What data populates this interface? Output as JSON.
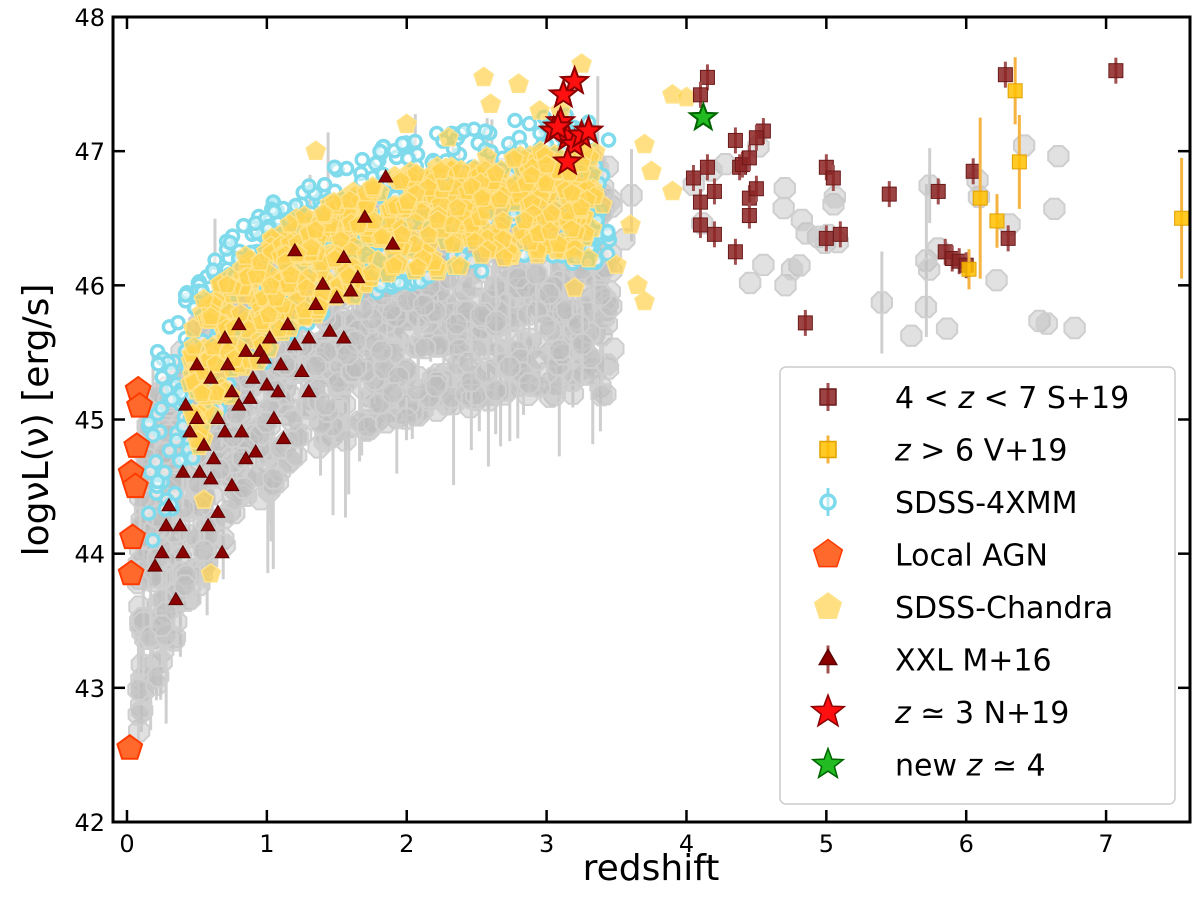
{
  "chart_data": {
    "type": "scatter",
    "title": "",
    "xlabel": "redshift",
    "ylabel": "logνL(ν) [erg/s]",
    "xlim": [
      -0.1,
      7.6
    ],
    "ylim": [
      42,
      48
    ],
    "xticks": [
      0,
      1,
      2,
      3,
      4,
      5,
      6,
      7
    ],
    "yticks": [
      42,
      43,
      44,
      45,
      46,
      47,
      48
    ],
    "xtick_labels": [
      "0",
      "1",
      "2",
      "3",
      "4",
      "5",
      "6",
      "7"
    ],
    "ytick_labels": [
      "42",
      "43",
      "44",
      "45",
      "46",
      "47",
      "48"
    ],
    "grid": false,
    "legend_position": "right",
    "colors": {
      "s19": "#8b2323",
      "v19": "#ffc000",
      "sdss4xmm": "#7fdbeb",
      "local": "#ff6a2c",
      "sdss_chandra": "#ffd24d",
      "xxl": "#8b0000",
      "n19": "#ff1010",
      "new": "#22bb22",
      "background": "#bdbdbd"
    },
    "series": [
      {
        "key": "bg",
        "name": "SDSS background sample (unlabelled)",
        "marker": "octagon",
        "in_legend": false,
        "points": []
      },
      {
        "key": "sdss4xmm",
        "name": "SDSS-4XMM",
        "marker": "circle",
        "in_legend": true,
        "points": []
      },
      {
        "key": "sdss_chandra",
        "name": "SDSS-Chandra",
        "marker": "pentagon",
        "in_legend": true,
        "points": [
          [
            3.25,
            47.65
          ],
          [
            2.55,
            47.55
          ],
          [
            2.8,
            47.5
          ],
          [
            3.1,
            47.3
          ],
          [
            3.9,
            47.42
          ],
          [
            4.0,
            47.4
          ],
          [
            3.7,
            47.05
          ],
          [
            3.75,
            46.85
          ],
          [
            3.9,
            46.7
          ],
          [
            3.4,
            46.6
          ],
          [
            3.6,
            46.45
          ],
          [
            3.3,
            46.2
          ],
          [
            3.5,
            46.15
          ],
          [
            3.65,
            46.0
          ],
          [
            3.7,
            45.88
          ],
          [
            3.2,
            45.98
          ],
          [
            0.6,
            43.85
          ],
          [
            0.55,
            44.4
          ],
          [
            1.35,
            47.0
          ],
          [
            2.0,
            47.2
          ],
          [
            2.3,
            47.1
          ],
          [
            2.6,
            47.35
          ],
          [
            2.95,
            47.3
          ]
        ]
      },
      {
        "key": "xxl",
        "name": "XXL M+16",
        "marker": "triangle",
        "in_legend": true,
        "points": [
          [
            0.35,
            43.65
          ],
          [
            0.25,
            44.0
          ],
          [
            0.3,
            44.35
          ],
          [
            0.4,
            44.6
          ],
          [
            0.45,
            44.9
          ],
          [
            0.5,
            45.0
          ],
          [
            0.55,
            44.8
          ],
          [
            0.6,
            44.55
          ],
          [
            0.65,
            44.3
          ],
          [
            0.7,
            44.9
          ],
          [
            0.75,
            45.2
          ],
          [
            0.8,
            45.1
          ],
          [
            0.85,
            44.7
          ],
          [
            0.9,
            45.3
          ],
          [
            0.95,
            45.5
          ],
          [
            1.0,
            45.25
          ],
          [
            1.05,
            45.0
          ],
          [
            1.1,
            45.4
          ],
          [
            1.15,
            45.7
          ],
          [
            1.2,
            45.55
          ],
          [
            1.25,
            45.35
          ],
          [
            1.3,
            45.6
          ],
          [
            1.35,
            45.85
          ],
          [
            1.4,
            46.0
          ],
          [
            1.45,
            45.65
          ],
          [
            1.5,
            45.9
          ],
          [
            1.55,
            46.2
          ],
          [
            1.6,
            45.95
          ],
          [
            1.65,
            46.05
          ],
          [
            1.7,
            46.5
          ],
          [
            1.85,
            46.8
          ],
          [
            1.9,
            46.3
          ],
          [
            1.2,
            46.25
          ],
          [
            0.7,
            45.6
          ],
          [
            0.6,
            45.3
          ],
          [
            0.5,
            45.4
          ],
          [
            0.42,
            45.1
          ],
          [
            0.38,
            44.2
          ],
          [
            0.2,
            43.9
          ],
          [
            0.28,
            44.2
          ],
          [
            0.58,
            44.2
          ],
          [
            0.68,
            44.0
          ],
          [
            0.75,
            44.5
          ],
          [
            0.82,
            44.9
          ],
          [
            0.88,
            45.15
          ],
          [
            0.98,
            45.45
          ],
          [
            1.08,
            45.2
          ],
          [
            1.12,
            44.85
          ],
          [
            0.65,
            45.0
          ],
          [
            0.72,
            45.4
          ],
          [
            0.92,
            44.75
          ],
          [
            1.02,
            45.6
          ],
          [
            0.8,
            45.7
          ],
          [
            0.4,
            44.0
          ],
          [
            0.52,
            44.6
          ],
          [
            0.62,
            44.7
          ],
          [
            0.85,
            45.5
          ],
          [
            1.55,
            45.6
          ],
          [
            1.3,
            45.2
          ]
        ]
      },
      {
        "key": "local",
        "name": "Local AGN",
        "marker": "pentagon",
        "in_legend": true,
        "points": [
          [
            0.08,
            45.22
          ],
          [
            0.09,
            45.1
          ],
          [
            0.07,
            44.8
          ],
          [
            0.03,
            44.6
          ],
          [
            0.06,
            44.5
          ],
          [
            0.04,
            44.12
          ],
          [
            0.03,
            43.85
          ],
          [
            0.02,
            42.55
          ]
        ]
      },
      {
        "key": "s19",
        "name": "4 < z < 7 S+19",
        "label_parts": [
          "4 < ",
          "z",
          " < 7 S+19"
        ],
        "marker": "square",
        "in_legend": true,
        "points": [
          [
            4.15,
            47.55
          ],
          [
            4.1,
            47.42
          ],
          [
            4.35,
            47.08
          ],
          [
            4.38,
            46.88
          ],
          [
            4.4,
            46.9
          ],
          [
            4.45,
            46.95
          ],
          [
            4.55,
            47.15
          ],
          [
            4.5,
            47.1
          ],
          [
            4.05,
            46.8
          ],
          [
            4.15,
            46.88
          ],
          [
            4.1,
            46.62
          ],
          [
            4.2,
            46.7
          ],
          [
            4.45,
            46.65
          ],
          [
            4.45,
            46.52
          ],
          [
            4.5,
            46.72
          ],
          [
            4.1,
            46.45
          ],
          [
            4.2,
            46.38
          ],
          [
            4.35,
            46.25
          ],
          [
            5.0,
            46.88
          ],
          [
            5.05,
            46.8
          ],
          [
            5.0,
            46.35
          ],
          [
            5.1,
            46.38
          ],
          [
            5.45,
            46.68
          ],
          [
            4.85,
            45.72
          ],
          [
            5.8,
            46.7
          ],
          [
            5.85,
            46.25
          ],
          [
            5.9,
            46.2
          ],
          [
            5.95,
            46.18
          ],
          [
            6.0,
            46.15
          ],
          [
            6.05,
            46.85
          ],
          [
            6.28,
            47.57
          ],
          [
            6.3,
            46.35
          ],
          [
            7.07,
            47.6
          ]
        ]
      },
      {
        "key": "v19",
        "name": "z > 6 V+19",
        "label_parts": [
          "",
          "z",
          " > 6 V+19"
        ],
        "marker": "square",
        "in_legend": true,
        "points": [
          [
            6.02,
            46.12
          ],
          [
            6.1,
            46.65
          ],
          [
            6.22,
            46.48
          ],
          [
            6.35,
            47.45
          ],
          [
            6.38,
            46.92
          ],
          [
            7.54,
            46.5
          ]
        ],
        "errors": [
          0.15,
          0.6,
          0.2,
          0.25,
          0.35,
          0.45
        ]
      },
      {
        "key": "n19",
        "name": "z ≃ 3 N+19",
        "label_parts": [
          "",
          "z",
          " ≃ 3 N+19"
        ],
        "marker": "star",
        "in_legend": true,
        "points": [
          [
            3.2,
            47.52
          ],
          [
            3.12,
            47.42
          ],
          [
            3.1,
            47.22
          ],
          [
            3.15,
            47.1
          ],
          [
            3.05,
            47.15
          ],
          [
            3.2,
            47.05
          ],
          [
            3.25,
            47.12
          ],
          [
            3.3,
            47.15
          ],
          [
            3.15,
            46.92
          ],
          [
            3.08,
            47.18
          ]
        ]
      },
      {
        "key": "new",
        "name": "new z ≃ 4",
        "label_parts": [
          "new ",
          "z",
          " ≃ 4"
        ],
        "marker": "star",
        "in_legend": true,
        "points": [
          [
            4.12,
            47.25
          ]
        ]
      }
    ],
    "legend": [
      {
        "key": "s19",
        "label_parts": [
          "4 < ",
          "z",
          " < 7 S+19"
        ]
      },
      {
        "key": "v19",
        "label_parts": [
          "",
          "z",
          " > 6 V+19"
        ]
      },
      {
        "key": "sdss4xmm",
        "label_parts": [
          "SDSS-4XMM"
        ]
      },
      {
        "key": "local",
        "label_parts": [
          "Local AGN"
        ]
      },
      {
        "key": "sdss_chandra",
        "label_parts": [
          "SDSS-Chandra"
        ]
      },
      {
        "key": "xxl",
        "label_parts": [
          "XXL M+16"
        ]
      },
      {
        "key": "n19",
        "label_parts": [
          "",
          "z",
          " ≃ 3 N+19"
        ]
      },
      {
        "key": "new",
        "label_parts": [
          "new ",
          "z",
          " ≃ 4"
        ]
      }
    ]
  }
}
